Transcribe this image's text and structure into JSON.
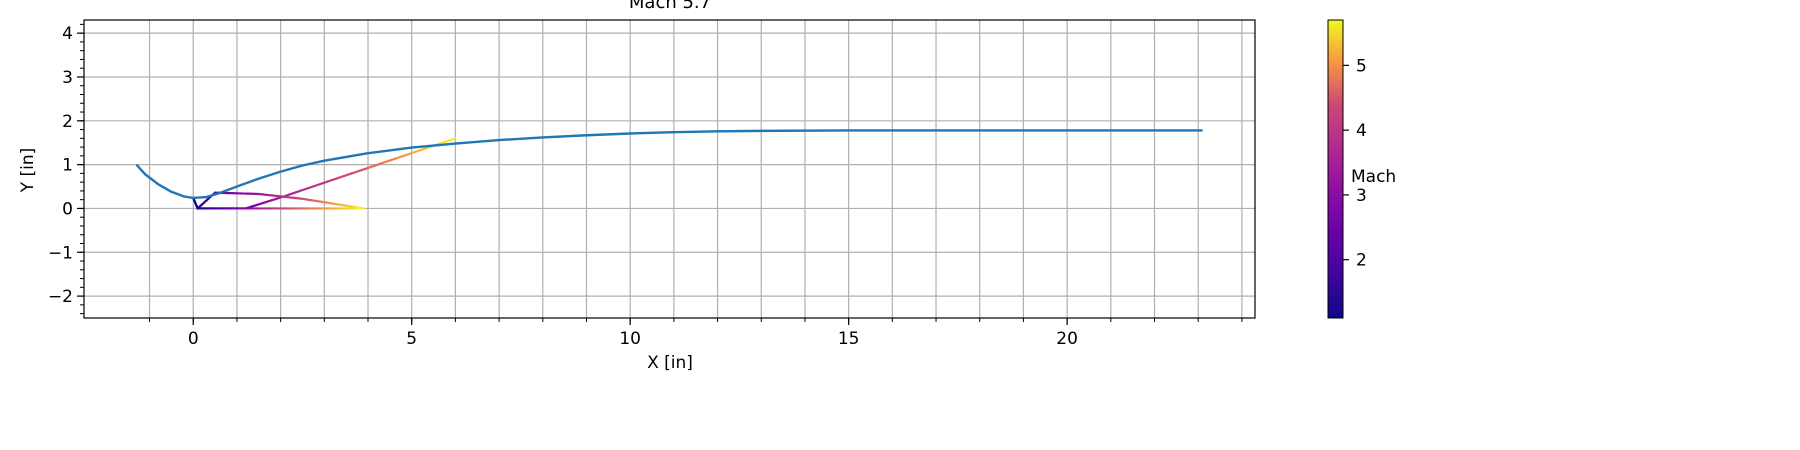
{
  "chart_data": {
    "type": "line",
    "title": "Mach 5.7",
    "xlabel": "X [in]",
    "ylabel": "Y [in]",
    "xlim": [
      -2.5,
      24.3
    ],
    "ylim": [
      -2.5,
      4.3
    ],
    "xticks": [
      0,
      5,
      10,
      15,
      20
    ],
    "xtick_labels": [
      "0",
      "5",
      "10",
      "15",
      "20"
    ],
    "yticks": [
      -2,
      -1,
      0,
      1,
      2,
      3,
      4
    ],
    "ytick_labels": [
      "−2",
      "−1",
      "0",
      "1",
      "2",
      "3",
      "4"
    ],
    "xgrid": [
      -1,
      0,
      1,
      2,
      3,
      4,
      5,
      6,
      7,
      8,
      9,
      10,
      11,
      12,
      13,
      14,
      15,
      16,
      17,
      18,
      19,
      20,
      21,
      22,
      23,
      24
    ],
    "ygrid": [
      -2,
      -1,
      0,
      1,
      2,
      3,
      4
    ],
    "grid": true,
    "series": [
      {
        "color": "#1f77b4",
        "x": [
          -1.3,
          -1.1,
          -0.8,
          -0.5,
          -0.2,
          0.0,
          0.3,
          0.6,
          1.0,
          1.5,
          2.0,
          2.5,
          3.0,
          4.0,
          5.0,
          6.0,
          7.0,
          8.0,
          9.0,
          10.0,
          11.0,
          12.0,
          13.0,
          15.0,
          17.0,
          20.0,
          23.1
        ],
        "y": [
          1.0,
          0.78,
          0.55,
          0.38,
          0.27,
          0.24,
          0.26,
          0.35,
          0.5,
          0.68,
          0.84,
          0.98,
          1.09,
          1.26,
          1.39,
          1.48,
          1.56,
          1.62,
          1.67,
          1.71,
          1.74,
          1.76,
          1.77,
          1.78,
          1.78,
          1.78,
          1.78
        ]
      }
    ],
    "characteristic_lines": [
      {
        "points": [
          [
            0.0,
            0.24
          ],
          [
            0.1,
            0.0
          ],
          [
            1.2,
            0.0
          ],
          [
            2.0,
            0.25
          ],
          [
            6.0,
            1.6
          ]
        ],
        "mach": [
          1.1,
          1.2,
          2.3,
          3.5,
          5.7
        ]
      },
      {
        "points": [
          [
            0.1,
            0.0
          ],
          [
            0.5,
            0.36
          ],
          [
            1.5,
            0.33
          ],
          [
            2.5,
            0.22
          ],
          [
            3.9,
            0.0
          ]
        ],
        "mach": [
          1.3,
          2.2,
          3.3,
          4.4,
          5.7
        ]
      },
      {
        "points": [
          [
            0.1,
            0.0
          ],
          [
            2.0,
            0.0
          ],
          [
            3.9,
            0.0
          ]
        ],
        "mach": [
          1.2,
          4.3,
          5.7
        ]
      }
    ],
    "colorbar": {
      "label": "Mach",
      "colormap": "plasma",
      "range": [
        1.1,
        5.7
      ],
      "ticks": [
        2,
        3,
        4,
        5
      ],
      "tick_labels": [
        "2",
        "3",
        "4",
        "5"
      ]
    }
  }
}
